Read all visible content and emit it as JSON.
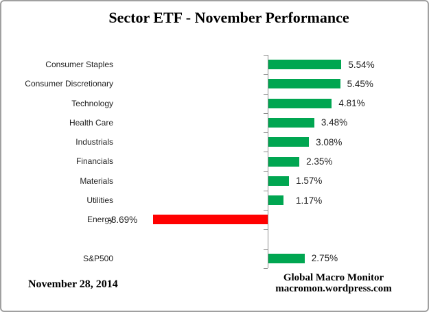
{
  "chart_data": {
    "type": "bar",
    "orientation": "horizontal",
    "title": "Sector ETF - November Performance",
    "categories": [
      "Consumer Staples",
      "Consumer Discretionary",
      "Technology",
      "Health Care",
      "Industrials",
      "Financials",
      "Materials",
      "Utilities",
      "Energy",
      "",
      "S&P500"
    ],
    "values": [
      5.54,
      5.45,
      4.81,
      3.48,
      3.08,
      2.35,
      1.57,
      1.17,
      -8.69,
      null,
      2.75
    ],
    "value_labels": [
      "5.54%",
      "5.45%",
      "4.81%",
      "3.48%",
      "3.08%",
      "2.35%",
      "1.57%",
      "1.17%",
      "-8.69%",
      "",
      "2.75%"
    ],
    "xlabel": "",
    "ylabel": "",
    "legend": "none",
    "grid": "off",
    "xlim": [
      -10,
      12
    ]
  },
  "colors": {
    "positive_bar": "#00A651",
    "negative_bar": "#FF0000",
    "axis": "#8C8C8C",
    "border": "#A0A0A0",
    "label_text": "#1F1F1F",
    "title_text": "#000000"
  },
  "footer": {
    "date": "November 28, 2014",
    "source_line1": "Global Macro Monitor",
    "source_line2": "macromon.wordpress.com"
  }
}
